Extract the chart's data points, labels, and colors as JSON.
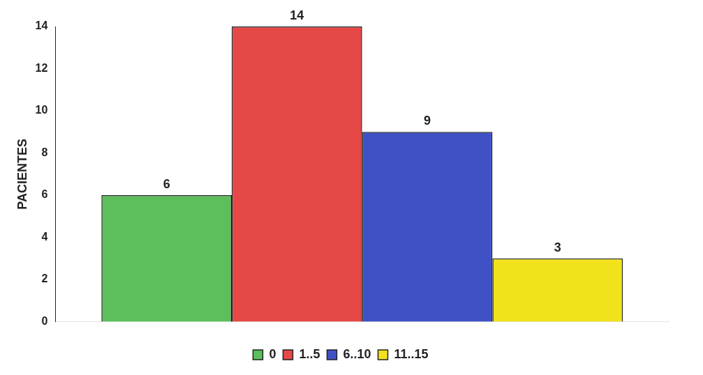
{
  "chart_data": {
    "type": "bar",
    "ylabel": "PACIENTES",
    "categories": [
      null
    ],
    "series": [
      {
        "name": "0",
        "color": "#5cbf5c",
        "values": [
          6
        ]
      },
      {
        "name": "1..5",
        "color": "#e64848",
        "values": [
          14
        ]
      },
      {
        "name": "6..10",
        "color": "#3f51c4",
        "values": [
          9
        ]
      },
      {
        "name": "11..15",
        "color": "#f2e21c",
        "values": [
          3
        ]
      }
    ],
    "ylim": [
      0,
      14
    ],
    "yticks": [
      0,
      2,
      4,
      6,
      8,
      10,
      12,
      14
    ],
    "grid": false,
    "legend": "bottom",
    "data_labels": true
  }
}
